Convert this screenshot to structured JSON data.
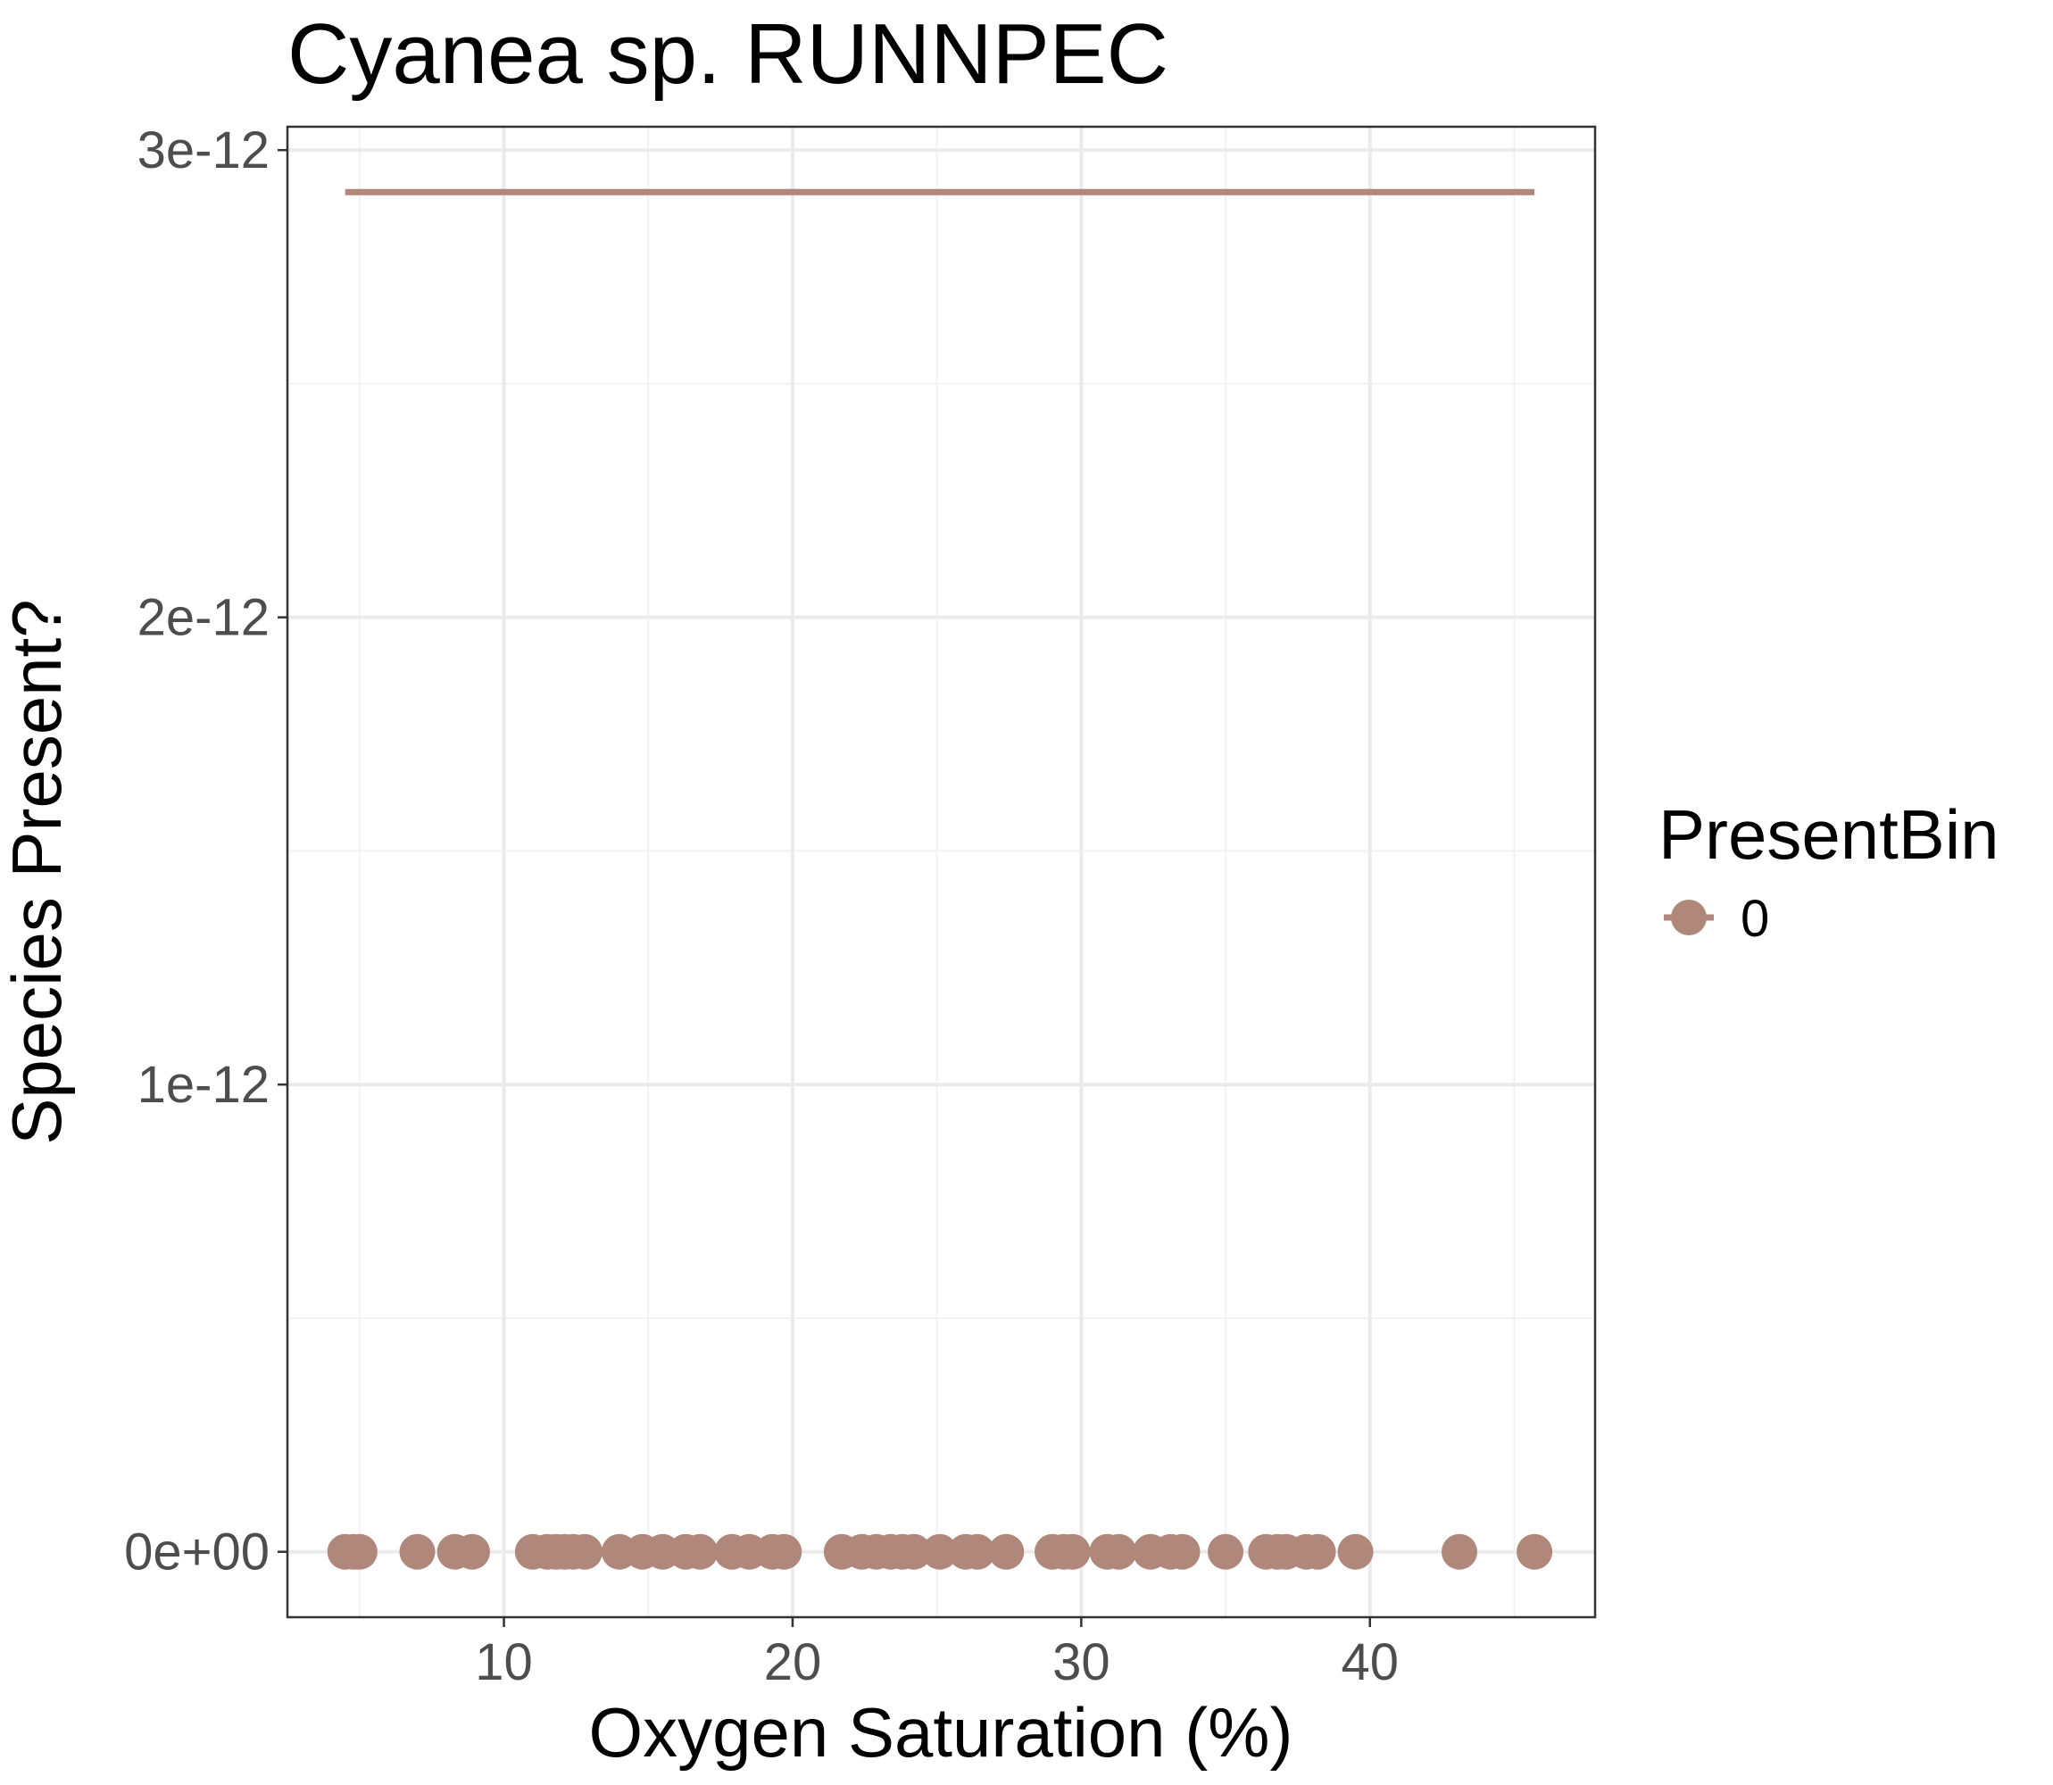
{
  "chart_data": {
    "type": "scatter",
    "title": "Cyanea sp. RUNNPEC",
    "xlabel": "Oxygen Saturation (%)",
    "ylabel": "Species Present?",
    "xlim": [
      2.5,
      47.8
    ],
    "ylim": [
      -1.4e-13,
      3.05e-12
    ],
    "x_ticks": [
      10,
      20,
      30,
      40
    ],
    "x_tick_labels": [
      "10",
      "20",
      "30",
      "40"
    ],
    "y_ticks": [
      0,
      1e-12,
      2e-12,
      3e-12
    ],
    "y_tick_labels": [
      "0e+00",
      "1e-12",
      "2e-12",
      "3e-12"
    ],
    "grid": true,
    "legend": {
      "title": "PresentBin",
      "position": "right",
      "entries": [
        {
          "label": "0",
          "color": "#b0877b"
        }
      ]
    },
    "series": [
      {
        "name": "0",
        "color": "#b0877b",
        "points_y": 0,
        "x": [
          4.5,
          4.8,
          5.0,
          7.0,
          8.3,
          8.9,
          11.0,
          11.5,
          11.8,
          12.1,
          12.4,
          12.8,
          14.0,
          14.8,
          15.5,
          16.3,
          16.8,
          17.9,
          18.5,
          19.3,
          19.7,
          21.7,
          22.4,
          22.9,
          23.4,
          23.8,
          24.2,
          25.1,
          26.0,
          26.4,
          27.4,
          29.0,
          29.4,
          29.7,
          30.9,
          31.3,
          32.4,
          33.1,
          33.5,
          35.0,
          36.4,
          36.8,
          37.1,
          37.8,
          38.2,
          39.5,
          43.1,
          45.7
        ],
        "fit_line": {
          "x": [
            4.5,
            45.7
          ],
          "y": [
            2.91e-12,
            2.91e-12
          ]
        }
      }
    ]
  }
}
